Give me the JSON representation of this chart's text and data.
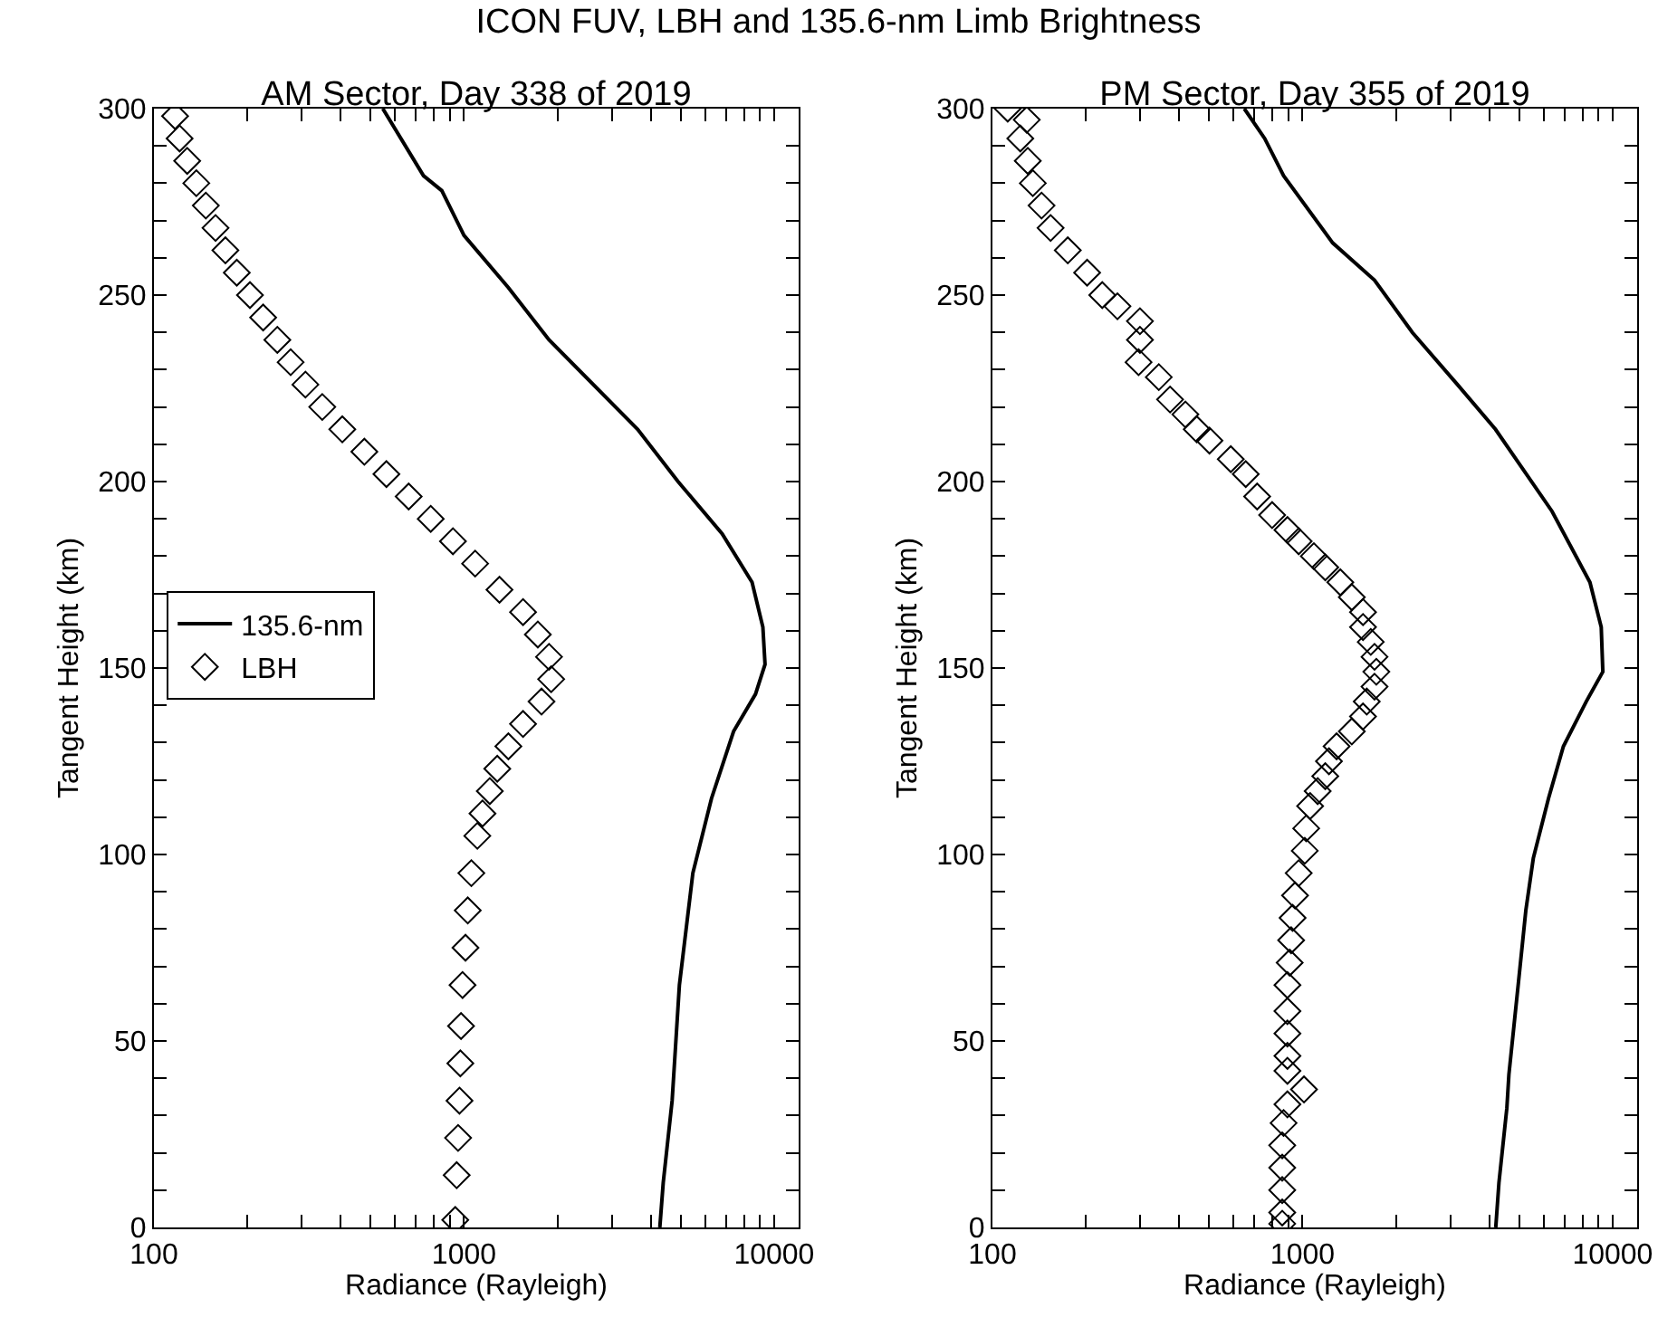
{
  "chart_data": [
    {
      "type": "line",
      "title": "ICON FUV, LBH and 135.6-nm Limb Brightness",
      "subtitle": "AM Sector, Day 338 of 2019",
      "xlabel": "Radiance (Rayleigh)",
      "ylabel": "Tangent Height (km)",
      "log": "x",
      "legend": "left",
      "xlim": [
        100,
        12000
      ],
      "xticks": [
        100,
        {
          "value": 200,
          "label": null
        },
        {
          "value": 300,
          "label": null
        },
        {
          "value": 400,
          "label": null
        },
        {
          "value": 500,
          "label": null
        },
        {
          "value": 600,
          "label": null
        },
        {
          "value": 700,
          "label": null
        },
        {
          "value": 800,
          "label": null
        },
        {
          "value": 900,
          "label": null
        },
        1000,
        {
          "value": 2000,
          "label": null
        },
        {
          "value": 3000,
          "label": null
        },
        {
          "value": 4000,
          "label": null
        },
        {
          "value": 5000,
          "label": null
        },
        {
          "value": 6000,
          "label": null
        },
        {
          "value": 7000,
          "label": null
        },
        {
          "value": 8000,
          "label": null
        },
        {
          "value": 9000,
          "label": null
        },
        10000
      ],
      "ylim": [
        0,
        300
      ],
      "yticks": [
        0,
        {
          "value": 10,
          "label": null
        },
        {
          "value": 20,
          "label": null
        },
        {
          "value": 30,
          "label": null
        },
        {
          "value": 40,
          "label": null
        },
        50,
        {
          "value": 60,
          "label": null
        },
        {
          "value": 70,
          "label": null
        },
        {
          "value": 80,
          "label": null
        },
        {
          "value": 90,
          "label": null
        },
        100,
        {
          "value": 110,
          "label": null
        },
        {
          "value": 120,
          "label": null
        },
        {
          "value": 130,
          "label": null
        },
        {
          "value": 140,
          "label": null
        },
        150,
        {
          "value": 160,
          "label": null
        },
        {
          "value": 170,
          "label": null
        },
        {
          "value": 180,
          "label": null
        },
        {
          "value": 190,
          "label": null
        },
        200,
        {
          "value": 210,
          "label": null
        },
        {
          "value": 220,
          "label": null
        },
        {
          "value": 230,
          "label": null
        },
        {
          "value": 240,
          "label": null
        },
        250,
        {
          "value": 260,
          "label": null
        },
        {
          "value": 270,
          "label": null
        },
        {
          "value": 280,
          "label": null
        },
        {
          "value": 290,
          "label": null
        },
        300
      ],
      "series": [
        {
          "name": "135.6-nm",
          "type": "line",
          "color": "#000000",
          "line_style": "solid",
          "x": [
            547,
            740,
            848,
            1000,
            1390,
            1880,
            3630,
            4900,
            6800,
            8490,
            9200,
            9350,
            8710,
            7400,
            6280,
            5470,
            4950,
            4690,
            4390,
            4280
          ],
          "values": [
            300,
            282,
            278,
            266,
            252,
            238,
            214,
            200,
            186,
            173,
            161,
            151,
            143,
            133,
            115,
            95,
            65,
            34,
            12,
            0
          ]
        },
        {
          "name": "LBH",
          "type": "scatter",
          "color": "#000000",
          "marker": "diamond",
          "x": [
            117,
            121,
            128,
            137,
            147,
            158,
            170,
            185,
            204,
            225,
            250,
            276,
            308,
            349,
            405,
            477,
            562,
            663,
            781,
            921,
            1086,
            1301,
            1550,
            1730,
            1880,
            1910,
            1778,
            1550,
            1390,
            1280,
            1211,
            1147,
            1104,
            1056,
            1028,
            1011,
            989,
            978,
            973,
            967,
            957,
            947,
            937
          ],
          "values": [
            298,
            292,
            286,
            280,
            274,
            268,
            262,
            256,
            250,
            244,
            238,
            232,
            226,
            220,
            214,
            208,
            202,
            196,
            190,
            184,
            178,
            171,
            165,
            159,
            153,
            147,
            141,
            135,
            129,
            123,
            117,
            111,
            105,
            95,
            85,
            75,
            65,
            54,
            44,
            34,
            24,
            14,
            2
          ]
        }
      ]
    },
    {
      "type": "line",
      "subtitle": "PM Sector, Day 355 of 2019",
      "xlabel": "Radiance (Rayleigh)",
      "ylabel": "Tangent Height (km)",
      "log": "x",
      "xlim": [
        100,
        12000
      ],
      "xticks": [
        100,
        {
          "value": 200,
          "label": null
        },
        {
          "value": 300,
          "label": null
        },
        {
          "value": 400,
          "label": null
        },
        {
          "value": 500,
          "label": null
        },
        {
          "value": 600,
          "label": null
        },
        {
          "value": 700,
          "label": null
        },
        {
          "value": 800,
          "label": null
        },
        {
          "value": 900,
          "label": null
        },
        1000,
        {
          "value": 2000,
          "label": null
        },
        {
          "value": 3000,
          "label": null
        },
        {
          "value": 4000,
          "label": null
        },
        {
          "value": 5000,
          "label": null
        },
        {
          "value": 6000,
          "label": null
        },
        {
          "value": 7000,
          "label": null
        },
        {
          "value": 8000,
          "label": null
        },
        {
          "value": 9000,
          "label": null
        },
        10000
      ],
      "ylim": [
        0,
        300
      ],
      "yticks": [
        0,
        {
          "value": 10,
          "label": null
        },
        {
          "value": 20,
          "label": null
        },
        {
          "value": 30,
          "label": null
        },
        {
          "value": 40,
          "label": null
        },
        50,
        {
          "value": 60,
          "label": null
        },
        {
          "value": 70,
          "label": null
        },
        {
          "value": 80,
          "label": null
        },
        {
          "value": 90,
          "label": null
        },
        100,
        {
          "value": 110,
          "label": null
        },
        {
          "value": 120,
          "label": null
        },
        {
          "value": 130,
          "label": null
        },
        {
          "value": 140,
          "label": null
        },
        150,
        {
          "value": 160,
          "label": null
        },
        {
          "value": 170,
          "label": null
        },
        {
          "value": 180,
          "label": null
        },
        {
          "value": 190,
          "label": null
        },
        200,
        {
          "value": 210,
          "label": null
        },
        {
          "value": 220,
          "label": null
        },
        {
          "value": 230,
          "label": null
        },
        {
          "value": 240,
          "label": null
        },
        250,
        {
          "value": 260,
          "label": null
        },
        {
          "value": 270,
          "label": null
        },
        {
          "value": 280,
          "label": null
        },
        {
          "value": 290,
          "label": null
        },
        300
      ],
      "series": [
        {
          "type": "line",
          "color": "#000000",
          "line_style": "solid",
          "x": [
            649,
            755,
            869,
            1251,
            1707,
            2260,
            3160,
            4190,
            6380,
            8450,
            9190,
            9300,
            8220,
            6940,
            6210,
            5550,
            5250,
            4960,
            4630,
            4560,
            4300,
            4200
          ],
          "values": [
            300,
            292,
            282,
            264,
            254,
            240,
            226,
            214,
            192,
            173,
            161,
            149,
            141,
            129,
            115,
            99,
            85,
            65,
            41,
            32,
            12,
            0
          ]
        },
        {
          "type": "scatter",
          "color": "#000000",
          "marker": "diamond",
          "x": [
            112,
            129,
            123,
            130,
            135,
            144,
            154,
            175,
            202,
            226,
            253,
            299,
            299,
            296,
            344,
            374,
            419,
            456,
            501,
            587,
            656,
            714,
            798,
            894,
            972,
            1088,
            1184,
            1324,
            1442,
            1567,
            1567,
            1660,
            1707,
            1730,
            1707,
            1611,
            1567,
            1442,
            1288,
            1217,
            1184,
            1119,
            1058,
            1028,
            1017,
            972,
            946,
            929,
            919,
            909,
            894,
            894,
            894,
            894,
            894,
            1011,
            894,
            869,
            860,
            860,
            860,
            860,
            860
          ],
          "values": [
            300,
            297,
            292,
            286,
            280,
            274,
            268,
            262,
            256,
            250,
            247,
            243,
            238,
            232,
            228,
            222,
            218,
            214,
            211,
            206,
            202,
            196,
            191,
            187,
            184,
            180,
            177,
            173,
            169,
            165,
            161,
            157,
            153,
            149,
            145,
            141,
            137,
            133,
            129,
            125,
            121,
            117,
            113,
            107,
            101,
            95,
            89,
            83,
            77,
            71,
            65,
            58,
            52,
            46,
            42,
            37,
            33,
            28,
            22,
            16,
            10,
            4,
            1
          ]
        }
      ]
    }
  ]
}
